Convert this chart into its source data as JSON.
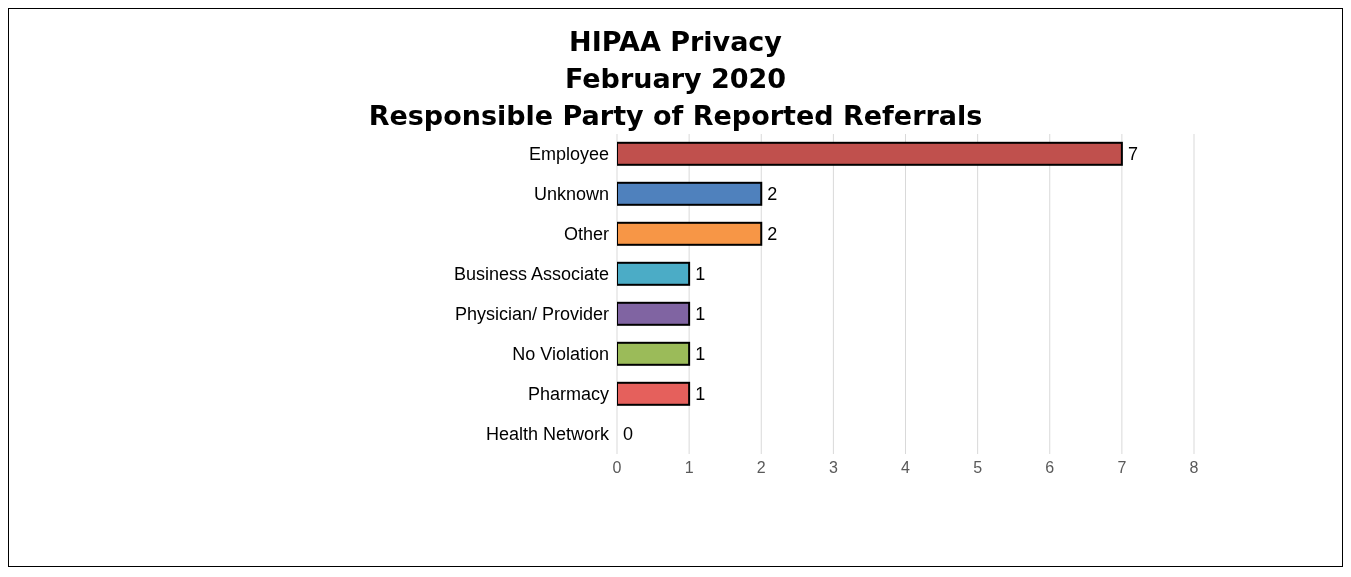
{
  "chart_data": {
    "type": "bar",
    "orientation": "horizontal",
    "title": "HIPAA Privacy\nFebruary 2020\nResponsible Party of Reported Referrals",
    "categories": [
      "Employee",
      "Unknown",
      "Other",
      "Business Associate",
      "Physician/ Provider",
      "No Violation",
      "Pharmacy",
      "Health Network"
    ],
    "values": [
      7,
      2,
      2,
      1,
      1,
      1,
      1,
      0
    ],
    "colors": [
      "#c0504d",
      "#4f81bd",
      "#f79646",
      "#4bacc6",
      "#8064a2",
      "#9bbb59",
      "#e5605c",
      "#000000"
    ],
    "xlim": [
      0,
      8
    ],
    "xticks": [
      0,
      1,
      2,
      3,
      4,
      5,
      6,
      7,
      8
    ],
    "grid": "x",
    "data_labels": true
  }
}
